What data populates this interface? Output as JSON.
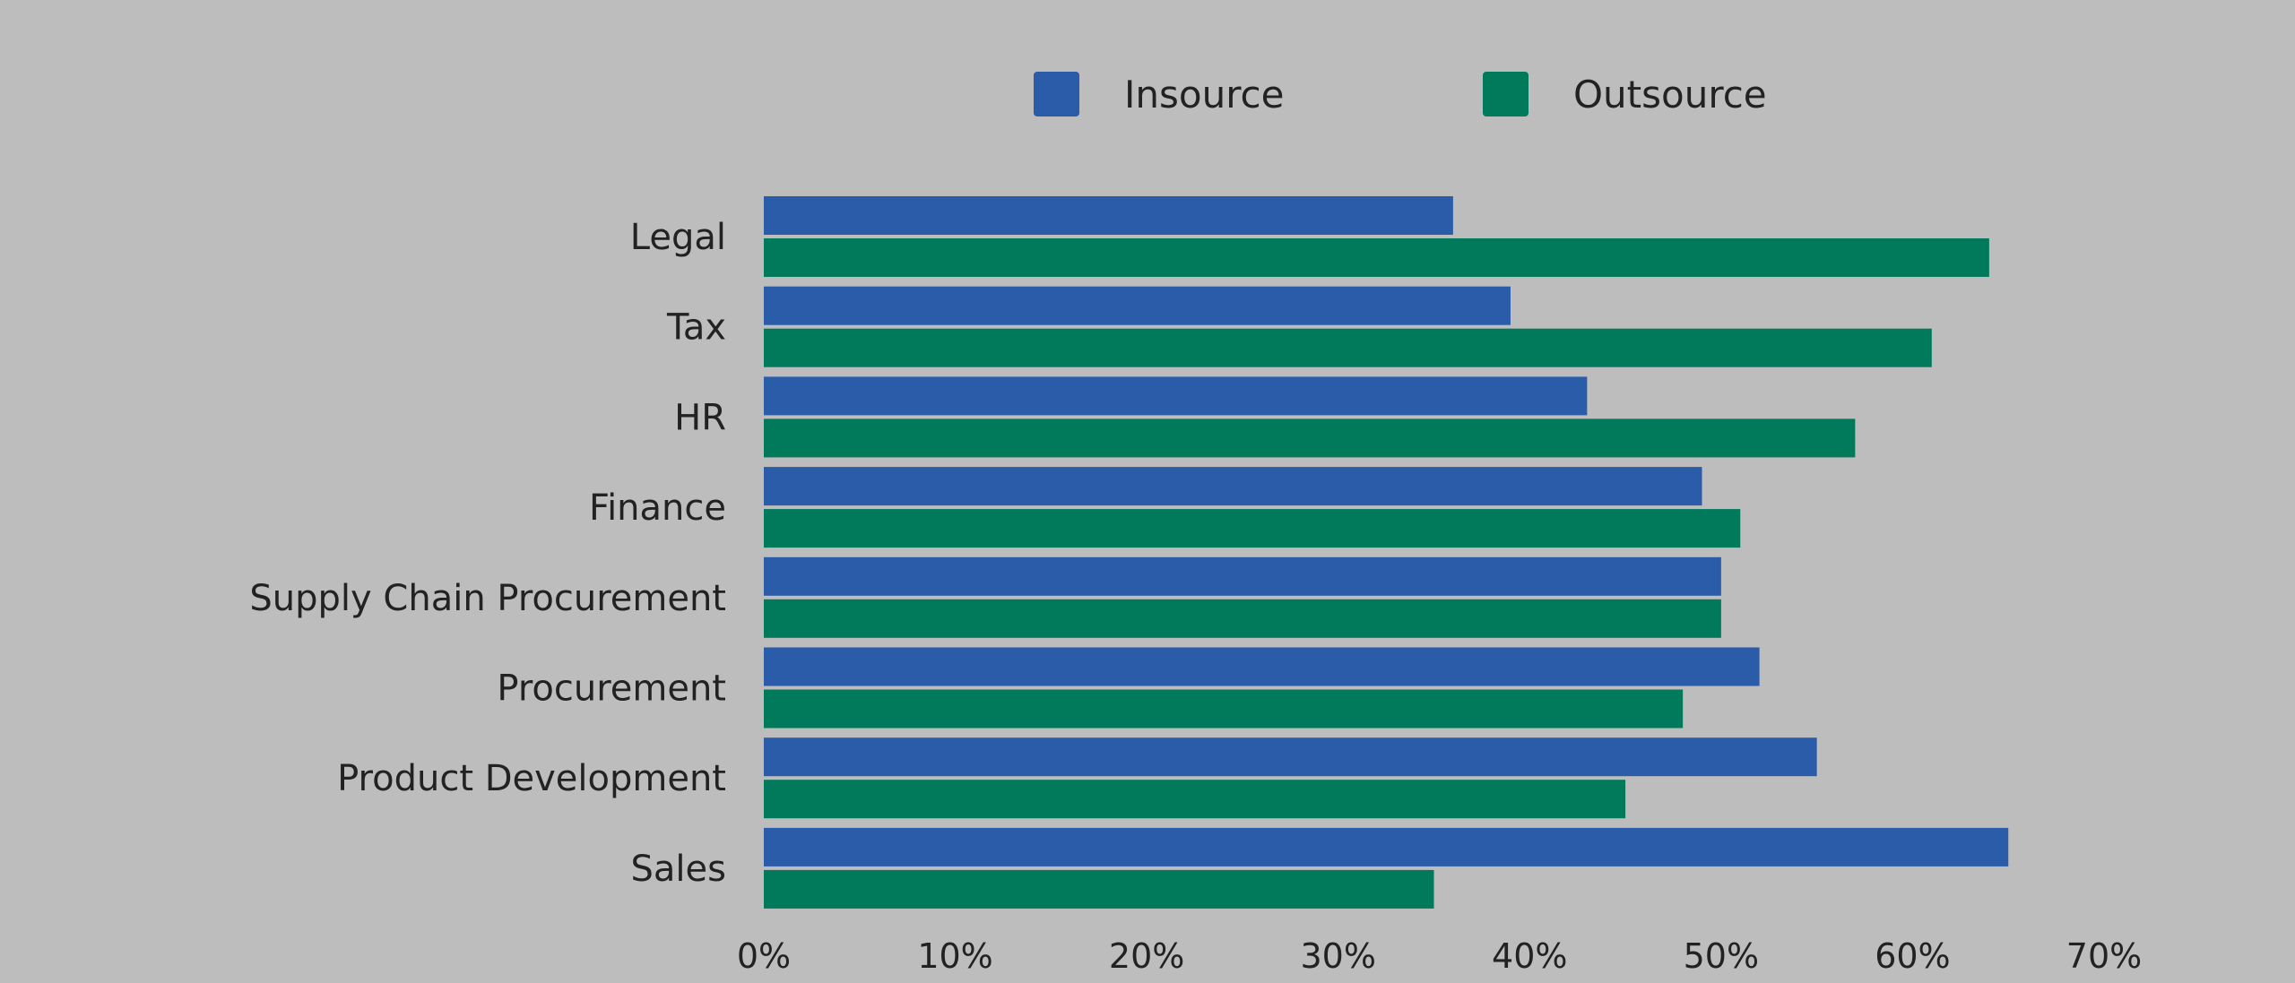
{
  "chart_data": {
    "type": "bar",
    "orientation": "horizontal",
    "title": "",
    "xlabel": "",
    "ylabel": "",
    "categories": [
      "Legal",
      "Tax",
      "HR",
      "Finance",
      "Supply Chain Procurement",
      "Procurement",
      "Product Development",
      "Sales"
    ],
    "series": [
      {
        "name": "Insource",
        "color": "#2a5caa",
        "values": [
          36,
          39,
          43,
          49,
          50,
          52,
          55,
          65
        ]
      },
      {
        "name": "Outsource",
        "color": "#007a5a",
        "values": [
          64,
          61,
          57,
          51,
          50,
          48,
          45,
          35
        ]
      }
    ],
    "xlim": [
      0,
      70
    ],
    "xticks": [
      0,
      10,
      20,
      30,
      40,
      50,
      60,
      70
    ],
    "xtick_labels": [
      "0%",
      "10%",
      "20%",
      "30%",
      "40%",
      "50%",
      "60%",
      "70%"
    ],
    "grid": false,
    "legend_position": "top-center",
    "background": "#bdbdbd"
  }
}
